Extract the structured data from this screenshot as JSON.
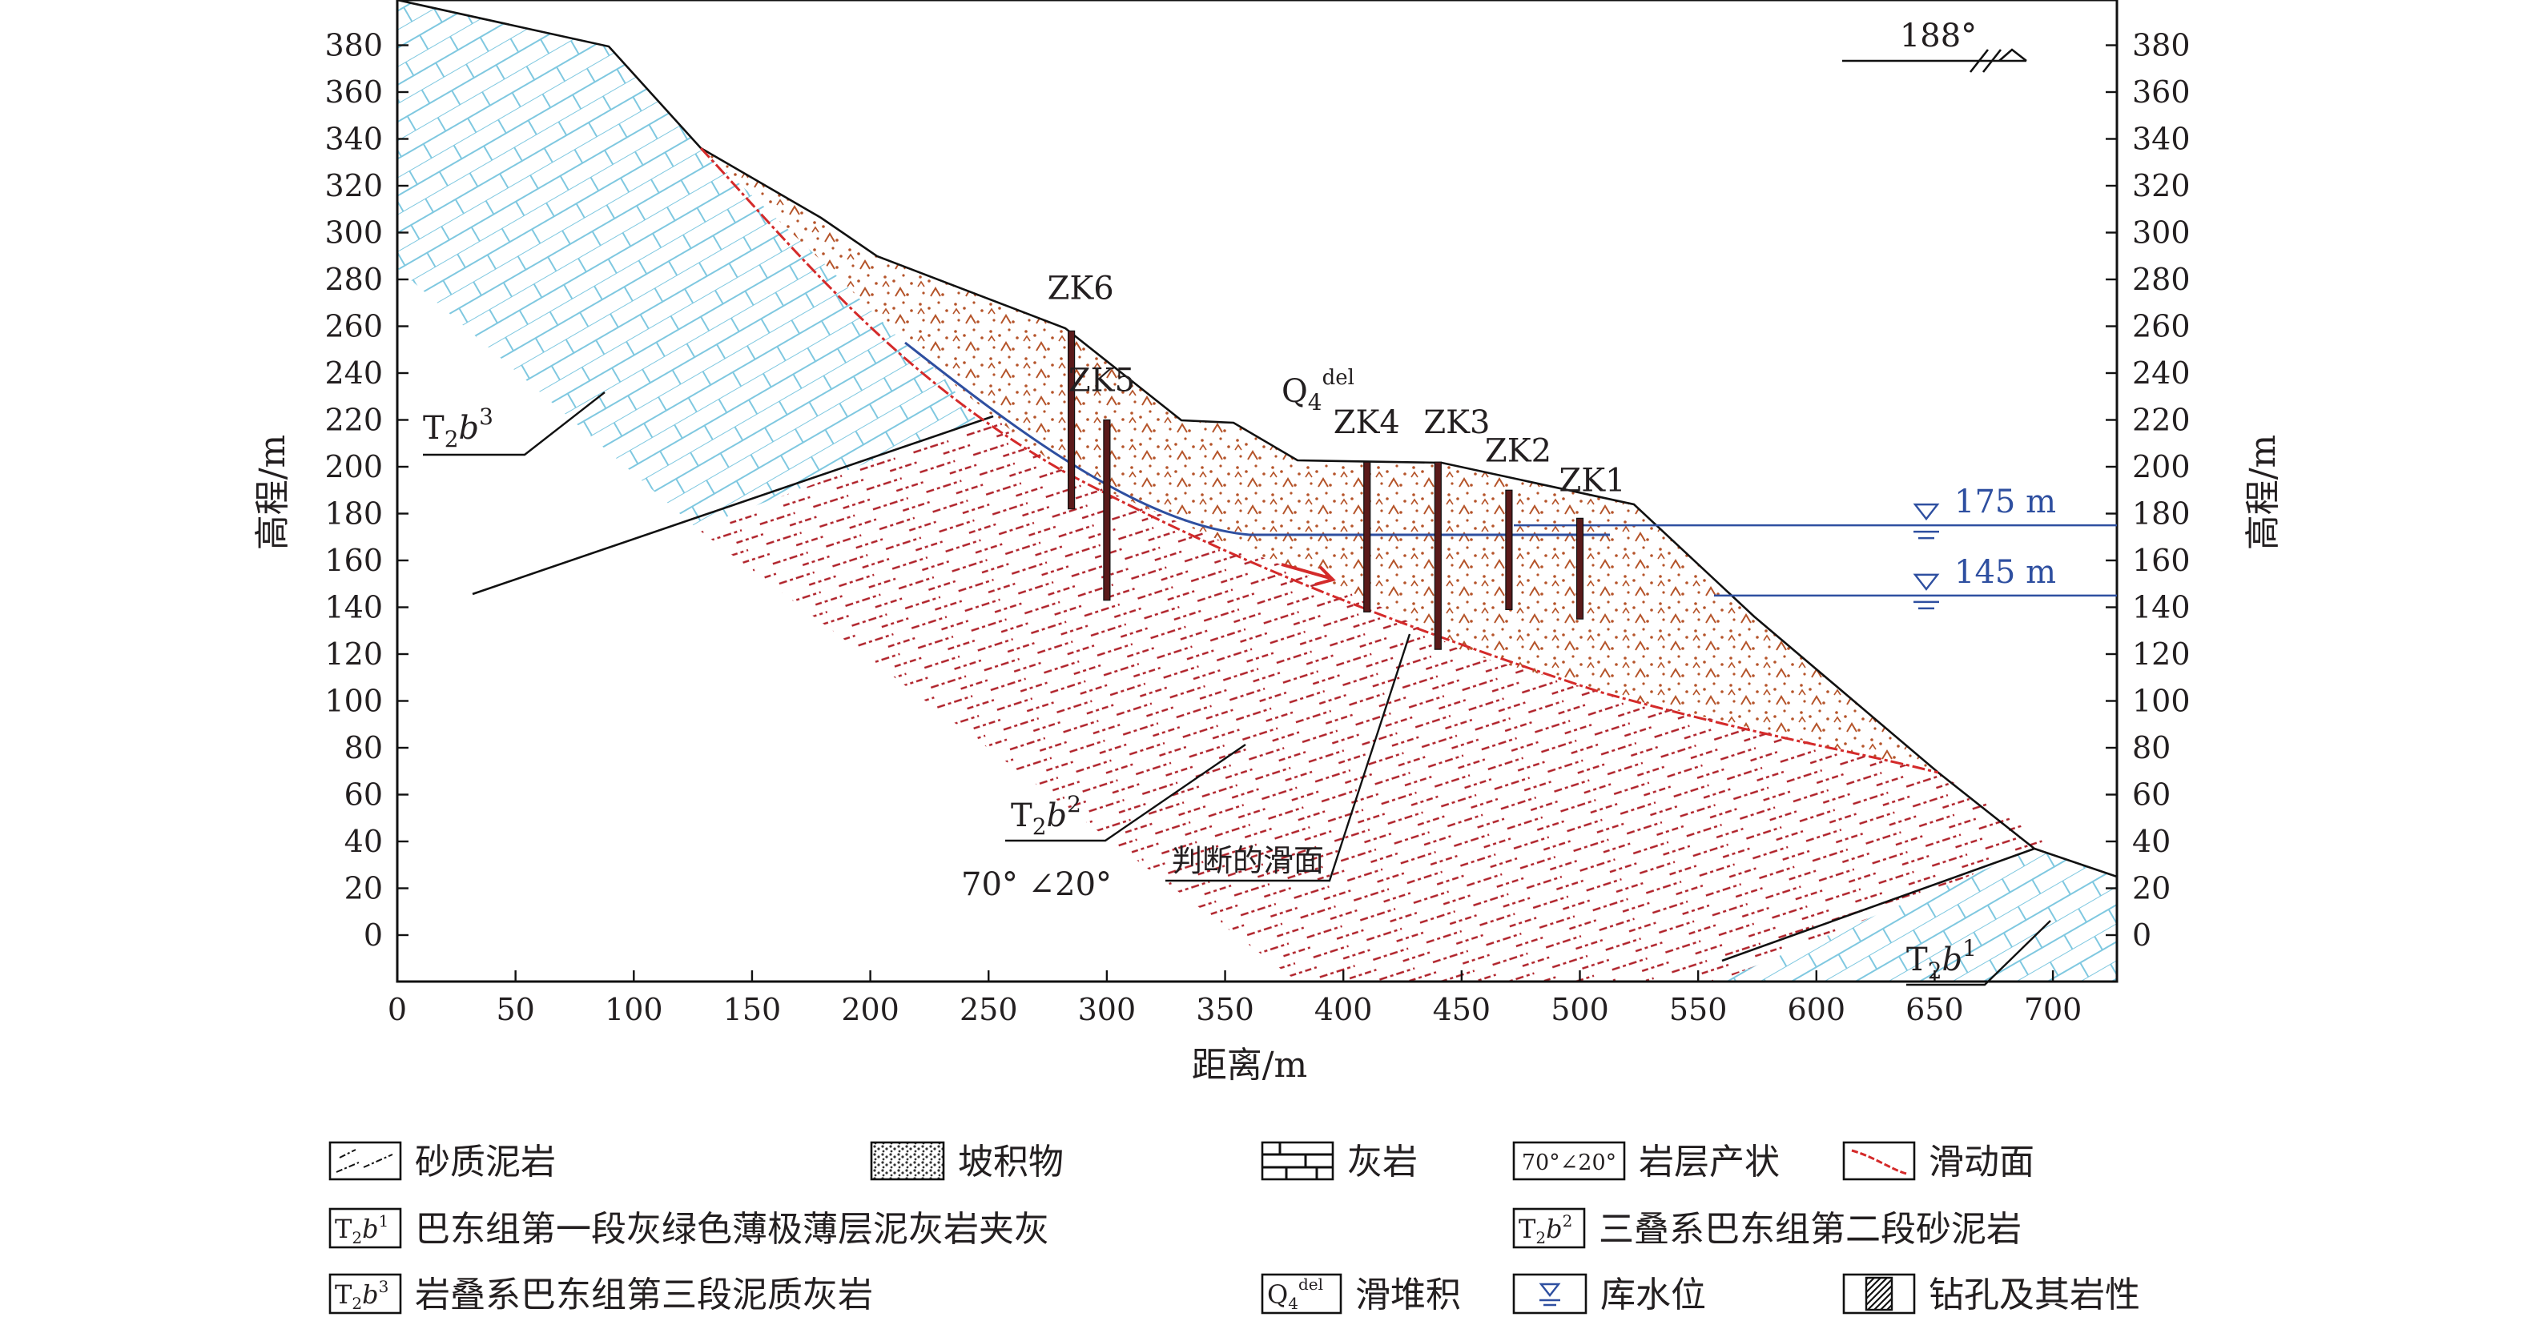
{
  "diagram": {
    "orientation": "188°",
    "axes": {
      "x_title": "距离/m",
      "y_title_left": "高程/m",
      "y_title_right": "高程/m",
      "x_ticks": [
        "0",
        "50",
        "100",
        "150",
        "200",
        "250",
        "300",
        "350",
        "400",
        "450",
        "500",
        "550",
        "600",
        "650",
        "700"
      ],
      "y_ticks": [
        "380",
        "360",
        "340",
        "320",
        "300",
        "280",
        "260",
        "240",
        "220",
        "200",
        "180",
        "160",
        "140",
        "120",
        "100",
        "80",
        "60",
        "40",
        "20",
        "0"
      ]
    },
    "boreholes": [
      {
        "id": "ZK6",
        "label": "ZK6",
        "x": 285,
        "top": 258,
        "bottom": 182
      },
      {
        "id": "ZK5",
        "label": "ZK5",
        "x": 300,
        "top": 220,
        "bottom": 143
      },
      {
        "id": "ZK4",
        "label": "ZK4",
        "x": 410,
        "top": 202,
        "bottom": 138
      },
      {
        "id": "ZK3",
        "label": "ZK3",
        "x": 440,
        "top": 202,
        "bottom": 122
      },
      {
        "id": "ZK2",
        "label": "ZK2",
        "x": 470,
        "top": 190,
        "bottom": 139
      },
      {
        "id": "ZK1",
        "label": "ZK1",
        "x": 500,
        "top": 178,
        "bottom": 135
      }
    ],
    "water_levels": [
      {
        "label": "175 m",
        "elevation": 175
      },
      {
        "label": "145 m",
        "elevation": 145
      }
    ],
    "strata_labels": {
      "t2b3": {
        "main": "T",
        "sub": "2",
        "italic": "b",
        "sup": "3"
      },
      "t2b2": {
        "main": "T",
        "sub": "2",
        "italic": "b",
        "sup": "2"
      },
      "t2b1": {
        "main": "T",
        "sub": "2",
        "italic": "b",
        "sup": "1"
      },
      "q4": {
        "main": "Q",
        "sub": "4",
        "sup": "del"
      }
    },
    "attitude": "70° ∠20°",
    "slip_surface_label": "判断的滑面",
    "colors": {
      "slip": "#d42a2a",
      "water": "#2e4fa0",
      "limestone": "#7fc8e0",
      "mudstone": "#b0222a",
      "colluvium": "#b5542a"
    }
  },
  "legend": {
    "sandy_mudstone": "砂质泥岩",
    "colluvium": "坡积物",
    "limestone": "灰岩",
    "attitude_box": "70°∠20°",
    "attitude_label": "岩层产状",
    "slip_surface": "滑动面",
    "t2b1_desc": "巴东组第一段灰绿色薄极薄层泥灰岩夹灰",
    "t2b2_desc": "三叠系巴东组第二段砂泥岩",
    "t2b3_desc": "岩叠系巴东组第三段泥质灰岩",
    "q4_desc": "滑堆积",
    "water_level": "库水位",
    "borehole": "钻孔及其岩性"
  }
}
